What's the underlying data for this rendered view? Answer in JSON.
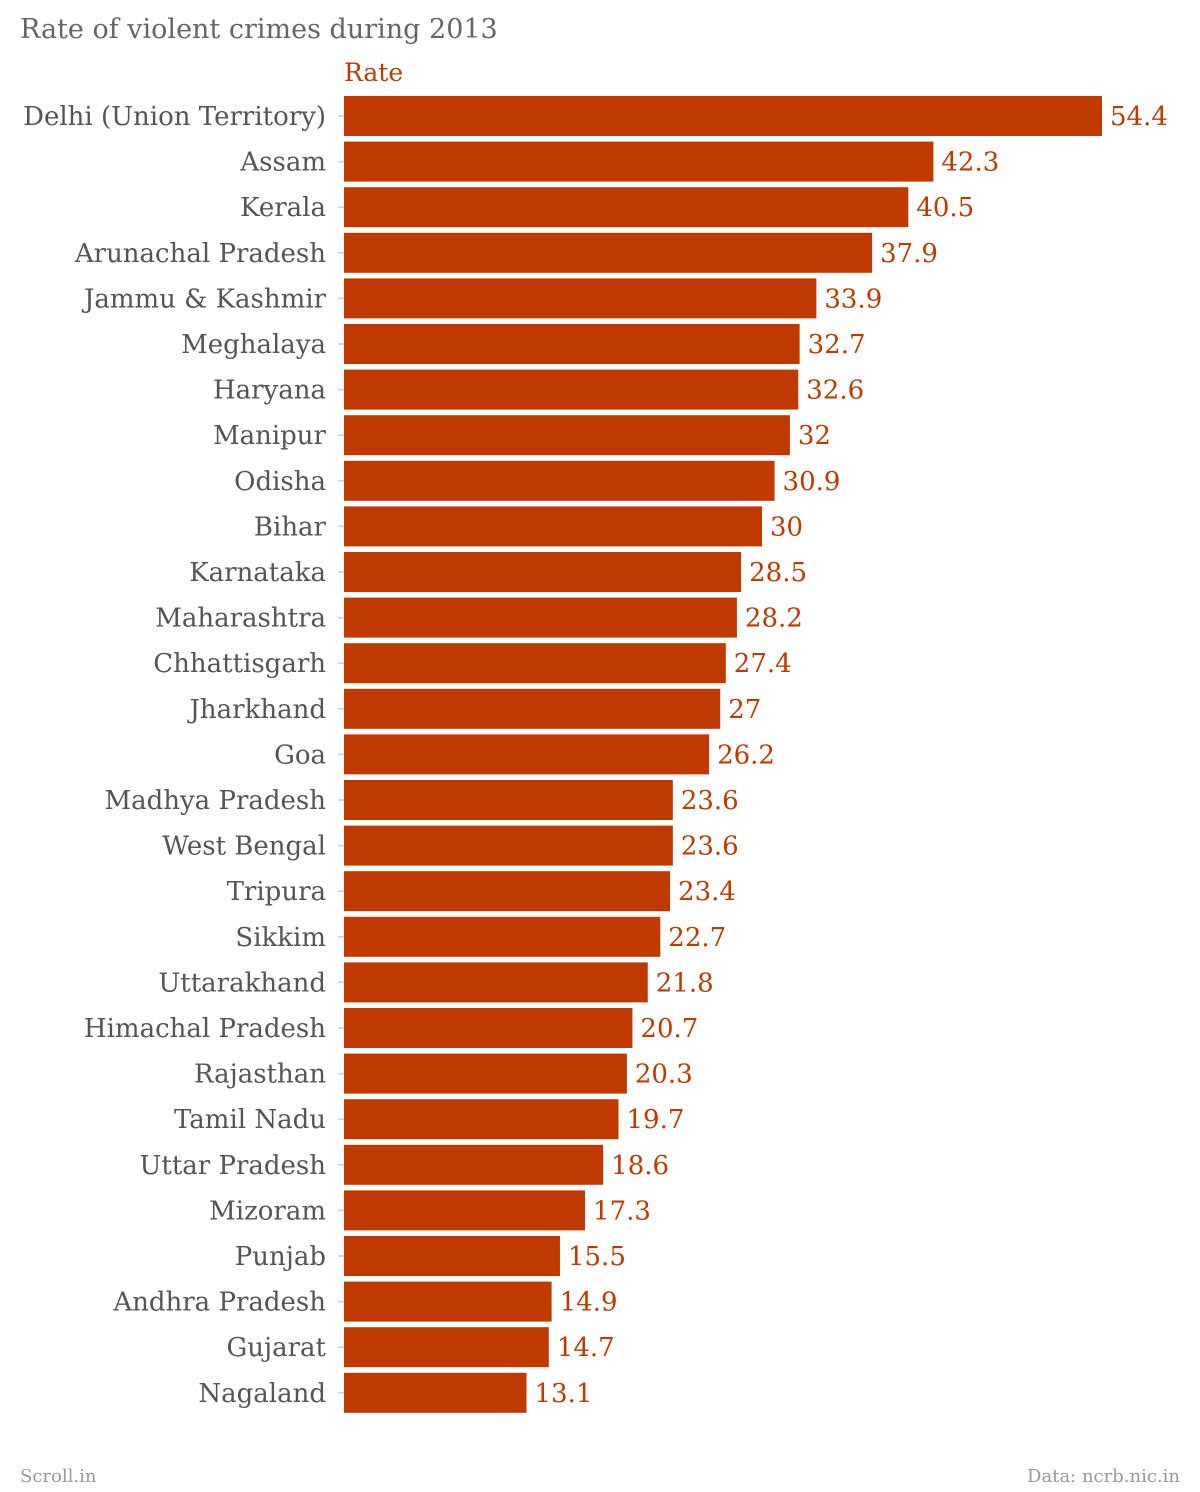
{
  "colors": {
    "bar": "#c03a00",
    "label": "#c03a00",
    "text": "#555555",
    "tick": "#cccccc"
  },
  "footer": {
    "source_left": "Scroll.in",
    "source_right": "Data: ncrb.nic.in"
  },
  "chart_data": {
    "type": "bar",
    "orientation": "horizontal",
    "title": "Rate of violent crimes during 2013",
    "series_name": "Rate",
    "xlim": [
      0,
      54.4
    ],
    "grid": false,
    "categories": [
      "Delhi (Union Territory)",
      "Assam",
      "Kerala",
      "Arunachal Pradesh",
      "Jammu & Kashmir",
      "Meghalaya",
      "Haryana",
      "Manipur",
      "Odisha",
      "Bihar",
      "Karnataka",
      "Maharashtra",
      "Chhattisgarh",
      "Jharkhand",
      "Goa",
      "Madhya Pradesh",
      "West Bengal",
      "Tripura",
      "Sikkim",
      "Uttarakhand",
      "Himachal Pradesh",
      "Rajasthan",
      "Tamil Nadu",
      "Uttar Pradesh",
      "Mizoram",
      "Punjab",
      "Andhra Pradesh",
      "Gujarat",
      "Nagaland"
    ],
    "values": [
      54.4,
      42.3,
      40.5,
      37.9,
      33.9,
      32.7,
      32.6,
      32,
      30.9,
      30,
      28.5,
      28.2,
      27.4,
      27,
      26.2,
      23.6,
      23.6,
      23.4,
      22.7,
      21.8,
      20.7,
      20.3,
      19.7,
      18.6,
      17.3,
      15.5,
      14.9,
      14.7,
      13.1
    ],
    "value_labels": [
      "54.4",
      "42.3",
      "40.5",
      "37.9",
      "33.9",
      "32.7",
      "32.6",
      "32",
      "30.9",
      "30",
      "28.5",
      "28.2",
      "27.4",
      "27",
      "26.2",
      "23.6",
      "23.6",
      "23.4",
      "22.7",
      "21.8",
      "20.7",
      "20.3",
      "19.7",
      "18.6",
      "17.3",
      "15.5",
      "14.9",
      "14.7",
      "13.1"
    ]
  }
}
